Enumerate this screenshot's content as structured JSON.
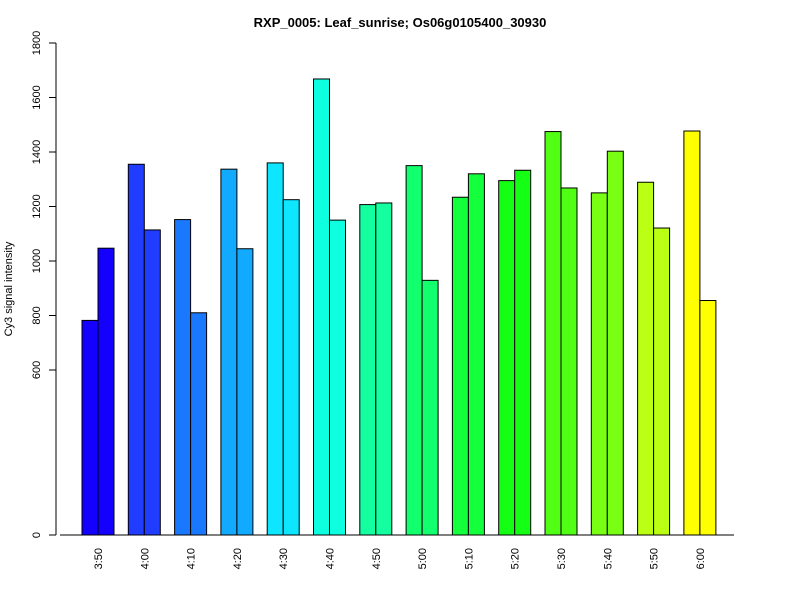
{
  "chart_data": {
    "type": "bar",
    "title": "RXP_0005: Leaf_sunrise; Os06g0105400_30930",
    "xlabel": "",
    "ylabel": "Cy3 signal intensity",
    "y_ticks": [
      0,
      600,
      800,
      1000,
      1200,
      1400,
      1600,
      1800
    ],
    "grid": false,
    "legend": "none",
    "categories": [
      "3:50",
      "4:00",
      "4:10",
      "4:20",
      "4:30",
      "4:40",
      "4:50",
      "5:00",
      "5:10",
      "5:20",
      "5:30",
      "5:40",
      "5:50",
      "6:00"
    ],
    "colors": [
      "#1400ff",
      "#1f3cff",
      "#1a78ff",
      "#12aaff",
      "#0ee6ff",
      "#0dffe0",
      "#14ffa0",
      "#12ff6e",
      "#14ff3c",
      "#14ff14",
      "#50ff14",
      "#78ff14",
      "#bbff14",
      "#ffff00"
    ],
    "series": [
      {
        "values": [
          782,
          1355,
          1152,
          1337,
          1360,
          1668,
          1207,
          1350,
          1234,
          1295,
          1475,
          1250,
          1289,
          1477
        ]
      },
      {
        "values": [
          1047,
          1114,
          810,
          1045,
          1225,
          1150,
          1213,
          929,
          1320,
          1333,
          1268,
          1403,
          1121,
          855
        ]
      }
    ]
  }
}
